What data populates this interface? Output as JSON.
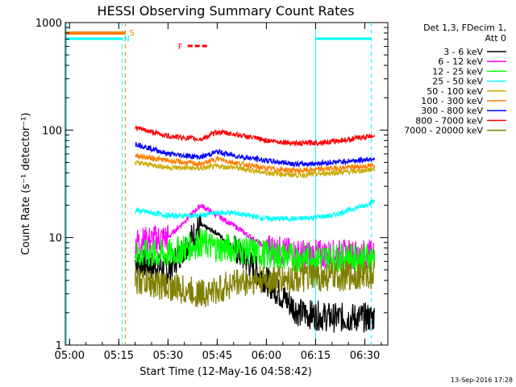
{
  "chart_data": {
    "type": "line",
    "title": "HESSI Observing Summary Count Rates",
    "xlabel": "Start Time (12-May-16 04:58:42)",
    "ylabel": "Count Rate (s⁻¹ detector⁻¹)",
    "ylim": [
      1,
      1000
    ],
    "yscale": "log",
    "x_range_minutes": [
      "04:58:42",
      "06:37:00"
    ],
    "x_ticks": [
      "05:00",
      "05:15",
      "05:30",
      "05:45",
      "06:00",
      "06:15",
      "06:30"
    ],
    "y_ticks": [
      "1",
      "10",
      "100",
      "1000"
    ],
    "legend_header": [
      "Det 1,3, FDecim 1,",
      "Att 0"
    ],
    "legend_position": "right",
    "footer": "13-Sep-2016 17:28",
    "flags": {
      "S": {
        "label": "S",
        "color": "#ff7f00",
        "start": "04:59",
        "end": "05:17"
      },
      "N": {
        "label": "N",
        "color": "#00ffff",
        "segments": [
          [
            "04:59",
            "05:16"
          ],
          [
            "06:15",
            "06:32"
          ]
        ]
      },
      "F": {
        "label": "F",
        "color": "#ff0000",
        "start": "05:36",
        "end": "05:42"
      }
    },
    "vlines": [
      {
        "time": "05:16",
        "color": "#00ffff",
        "style": "dashed"
      },
      {
        "time": "05:17",
        "color": "#ff7f00",
        "style": "dashed"
      },
      {
        "time": "06:15",
        "color": "#00ffff",
        "style": "solid"
      },
      {
        "time": "06:32",
        "color": "#00ffff",
        "style": "dashed"
      },
      {
        "time": "04:59",
        "color": "#00ffff",
        "style": "solid"
      }
    ],
    "x": [
      "05:20",
      "05:30",
      "05:40",
      "05:45",
      "05:50",
      "06:00",
      "06:10",
      "06:20",
      "06:30",
      "06:33"
    ],
    "series": [
      {
        "name": "3 - 6 keV",
        "color": "#000000",
        "values": [
          6,
          5,
          13,
          11,
          8,
          4,
          2,
          1.8,
          1.8,
          1.8
        ]
      },
      {
        "name": "6 - 12 keV",
        "color": "#ff00ff",
        "values": [
          9,
          10,
          20,
          16,
          13,
          8,
          7,
          7,
          7,
          7
        ]
      },
      {
        "name": "12 - 25 keV",
        "color": "#00ff00",
        "values": [
          7,
          7,
          9,
          8,
          8,
          7,
          6.5,
          6.5,
          6.5,
          6.5
        ]
      },
      {
        "name": "25 - 50 keV",
        "color": "#00ffff",
        "values": [
          18,
          16,
          16,
          17,
          17,
          15,
          15,
          16,
          20,
          22
        ]
      },
      {
        "name": "50 - 100 keV",
        "color": "#ccaa00",
        "values": [
          50,
          45,
          44,
          46,
          45,
          40,
          38,
          40,
          42,
          44
        ]
      },
      {
        "name": "100 - 300 keV",
        "color": "#ff7f00",
        "values": [
          58,
          52,
          48,
          54,
          50,
          44,
          42,
          44,
          46,
          47
        ]
      },
      {
        "name": "300 - 800 keV",
        "color": "#0000ff",
        "values": [
          75,
          60,
          56,
          63,
          58,
          52,
          48,
          50,
          53,
          55
        ]
      },
      {
        "name": "800 - 7000 keV",
        "color": "#ff0000",
        "values": [
          105,
          88,
          82,
          96,
          92,
          80,
          75,
          78,
          86,
          90
        ]
      },
      {
        "name": "7000 - 20000 keV",
        "color": "#808000",
        "values": [
          4,
          3.5,
          3,
          3.2,
          3.8,
          4,
          4.2,
          4.3,
          4.5,
          4.5
        ]
      }
    ]
  }
}
